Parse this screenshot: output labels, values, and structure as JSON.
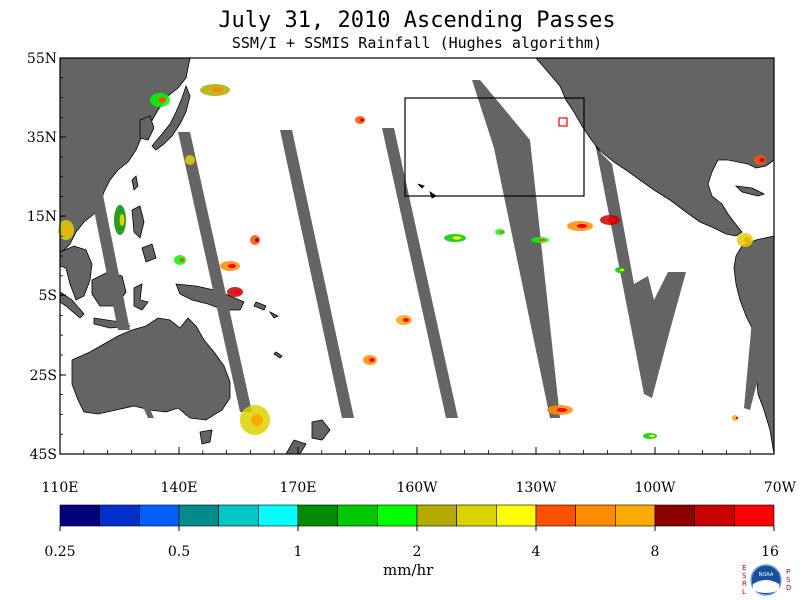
{
  "title": "July 31, 2010  Ascending Passes",
  "subtitle": "SSM/I + SSMIS Rainfall (Hughes algorithm)",
  "map": {
    "lat_labels": [
      "55N",
      "35N",
      "15N",
      "5S",
      "25S",
      "45S"
    ],
    "lon_labels": [
      "110E",
      "140E",
      "170E",
      "160W",
      "130W",
      "100W",
      "70W"
    ],
    "colors": {
      "ocean": "#ffffff",
      "land": "#646464",
      "swath": "#646464",
      "coast": "#000000",
      "box": "#000000",
      "marker": "#ff0000"
    }
  },
  "legend": {
    "ticks": [
      "0.25",
      "0.5",
      "1",
      "2",
      "4",
      "8",
      "16"
    ],
    "unit": "mm/hr",
    "colors": [
      "#00007f",
      "#0030cc",
      "#0060ff",
      "#008c8c",
      "#00c8c8",
      "#00ffff",
      "#008c00",
      "#00c800",
      "#00ff00",
      "#b4aa00",
      "#dcd200",
      "#ffff00",
      "#ff5000",
      "#ff8c00",
      "#ffaa00",
      "#8c0000",
      "#c80000",
      "#ff0000"
    ]
  },
  "logo": {
    "left_letters": "ESRL",
    "right_letters": "PSD",
    "badge": "NOAA"
  }
}
